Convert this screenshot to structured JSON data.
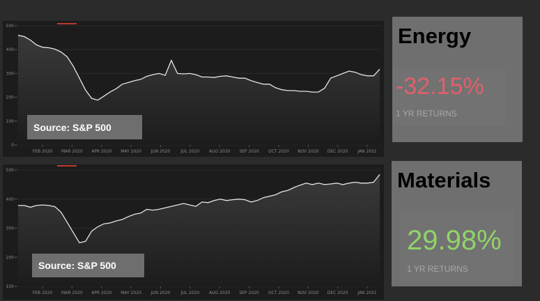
{
  "charts": [
    {
      "sector": "Energy",
      "source_label": "Source: S&P 500",
      "return_value": "-32.15%",
      "return_label": "1 YR RETURNS",
      "return_color": "#e0606c",
      "ylim": [
        0,
        500
      ],
      "yticks": [
        "0",
        "100",
        "200",
        "300",
        "400",
        "500"
      ],
      "months": [
        "FEB 2020",
        "MAR 2020",
        "APR 2020",
        "MAY 2020",
        "JUN 2020",
        "JUL 2020",
        "AUG 2020",
        "SEP 2020",
        "OCT 2020",
        "NOV 2020",
        "DEC 2020",
        "JAN 2021"
      ],
      "series": [
        460,
        455,
        440,
        420,
        410,
        408,
        402,
        390,
        370,
        330,
        280,
        230,
        195,
        188,
        205,
        222,
        236,
        255,
        262,
        270,
        275,
        288,
        295,
        300,
        292,
        355,
        300,
        298,
        300,
        295,
        285,
        285,
        283,
        288,
        290,
        285,
        280,
        280,
        270,
        262,
        255,
        255,
        240,
        232,
        228,
        228,
        225,
        225,
        222,
        222,
        238,
        280,
        290,
        300,
        310,
        305,
        295,
        290,
        290,
        318
      ]
    },
    {
      "sector": "Materials",
      "source_label": "Source: S&P 500",
      "return_value": "29.98%",
      "return_label": "1 YR RETURNS",
      "return_color": "#8fd46a",
      "ylim": [
        100,
        500
      ],
      "yticks": [
        "100",
        "200",
        "300",
        "400",
        "500"
      ],
      "months": [
        "FEB 2020",
        "MAR 2020",
        "APR 2020",
        "MAY 2020",
        "JUN 2020",
        "JUL 2020",
        "AUG 2020",
        "SEP 2020",
        "OCT 2020",
        "NOV 2020",
        "DEC 2020",
        "JAN 2021"
      ],
      "series": [
        378,
        378,
        372,
        378,
        380,
        378,
        374,
        355,
        320,
        285,
        250,
        255,
        290,
        305,
        315,
        318,
        325,
        330,
        340,
        348,
        352,
        365,
        362,
        365,
        370,
        375,
        380,
        385,
        380,
        375,
        390,
        388,
        395,
        400,
        395,
        398,
        400,
        398,
        390,
        395,
        405,
        410,
        415,
        425,
        430,
        440,
        448,
        455,
        450,
        455,
        450,
        452,
        455,
        450,
        455,
        458,
        455,
        455,
        458,
        485
      ]
    }
  ]
}
